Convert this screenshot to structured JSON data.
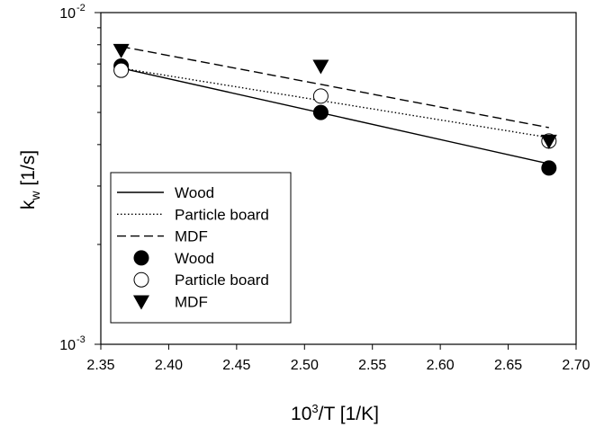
{
  "chart_data": {
    "type": "scatter",
    "title": "",
    "xlabel": {
      "main": "10",
      "sup": "3",
      "rest": "/T [1/K]"
    },
    "ylabel": {
      "main": "k",
      "sub": "w",
      "rest": " [1/s]"
    },
    "xlim": [
      2.35,
      2.7
    ],
    "ylim": [
      0.001,
      0.01
    ],
    "yscale": "log",
    "grid": false,
    "legend_position": "lower-left",
    "x_ticks": [
      2.35,
      2.4,
      2.45,
      2.5,
      2.55,
      2.6,
      2.65,
      2.7
    ],
    "x_tick_labels": [
      "2.35",
      "2.40",
      "2.45",
      "2.50",
      "2.55",
      "2.60",
      "2.65",
      "2.70"
    ],
    "y_tick_labels": [
      {
        "value": 0.01,
        "base": "10",
        "exp": "-2"
      },
      {
        "value": 0.001,
        "base": "10",
        "exp": "-3"
      }
    ],
    "series": [
      {
        "name": "Wood",
        "kind": "line",
        "dash": "solid",
        "x": [
          2.365,
          2.68
        ],
        "y": [
          0.0068,
          0.0035
        ]
      },
      {
        "name": "Particle board",
        "kind": "line",
        "dash": "dotted",
        "x": [
          2.365,
          2.68
        ],
        "y": [
          0.0068,
          0.0042
        ]
      },
      {
        "name": "MDF",
        "kind": "line",
        "dash": "dashed",
        "x": [
          2.365,
          2.68
        ],
        "y": [
          0.0079,
          0.0045
        ]
      },
      {
        "name": "Wood",
        "kind": "marker",
        "marker": "filled-circle",
        "x": [
          2.365,
          2.512,
          2.68
        ],
        "y": [
          0.0069,
          0.005,
          0.0034
        ]
      },
      {
        "name": "Particle board",
        "kind": "marker",
        "marker": "open-circle",
        "x": [
          2.365,
          2.512,
          2.68
        ],
        "y": [
          0.0067,
          0.0056,
          0.0041
        ]
      },
      {
        "name": "MDF",
        "kind": "marker",
        "marker": "filled-triangle-down",
        "x": [
          2.365,
          2.512,
          2.68
        ],
        "y": [
          0.0077,
          0.0069,
          0.0041
        ]
      }
    ]
  }
}
